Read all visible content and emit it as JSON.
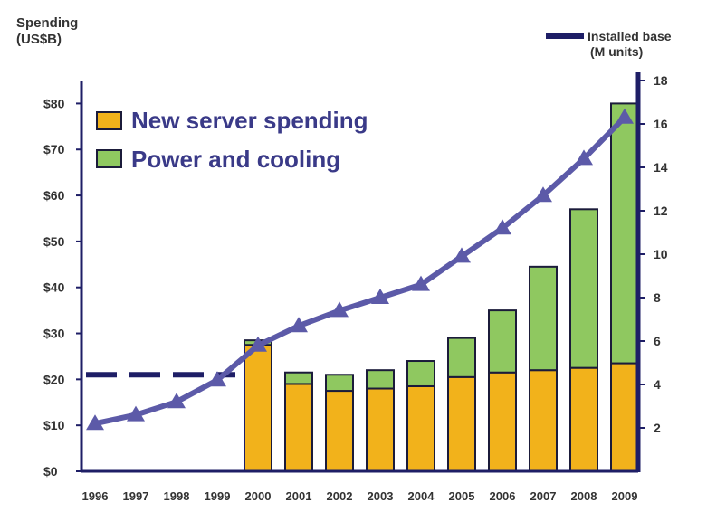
{
  "chart_data": {
    "type": "bar",
    "stacked": true,
    "categories": [
      "1996",
      "1997",
      "1998",
      "1999",
      "2000",
      "2001",
      "2002",
      "2003",
      "2004",
      "2005",
      "2006",
      "2007",
      "2008",
      "2009"
    ],
    "series": [
      {
        "name": "New server spending",
        "color": "#f2b21b",
        "axis": "left",
        "values": [
          null,
          null,
          null,
          null,
          27.5,
          19,
          17.5,
          18,
          18.5,
          20.5,
          21.5,
          22,
          22.5,
          23.5
        ]
      },
      {
        "name": "Power and cooling",
        "color": "#8fc860",
        "axis": "left",
        "values": [
          null,
          null,
          null,
          null,
          1,
          2.5,
          3.5,
          4,
          5.5,
          8.5,
          13.5,
          22.5,
          34.5,
          56.5
        ]
      },
      {
        "name": "Installed base",
        "color": "#5c5aa8",
        "type": "line",
        "axis": "right",
        "values": [
          2.2,
          2.6,
          3.2,
          4.2,
          5.8,
          6.7,
          7.4,
          8.0,
          8.6,
          9.9,
          11.2,
          12.7,
          14.4,
          16.3
        ]
      }
    ],
    "left_axis": {
      "label_line1": "Spending",
      "label_line2": "(US$B)",
      "ylim": [
        0,
        85
      ],
      "ticks": [
        0,
        10,
        20,
        30,
        40,
        50,
        60,
        70,
        80
      ],
      "tick_labels": [
        "$0",
        "$10",
        "$20",
        "$30",
        "$40",
        "$50",
        "$60",
        "$70",
        "$80"
      ]
    },
    "right_axis": {
      "label_line1": "Installed base",
      "label_line2": "(M units)",
      "ylim": [
        0,
        18
      ],
      "ticks": [
        2,
        4,
        6,
        8,
        10,
        12,
        14,
        16,
        18
      ],
      "tick_labels": [
        "2",
        "4",
        "6",
        "8",
        "10",
        "12",
        "14",
        "16",
        "18"
      ]
    },
    "dashed_reference": {
      "value": 21,
      "from": "1996",
      "to": "1999",
      "axis": "left"
    },
    "legend": {
      "position": "top-left",
      "top_right_entry": "Installed base"
    },
    "grid": false
  },
  "legend_labels": {
    "server": "New server spending",
    "power": "Power and cooling",
    "installed_line1": "Installed base",
    "installed_line2": "(M units)"
  },
  "axis_titles": {
    "left_line1": "Spending",
    "left_line2": "(US$B)"
  },
  "colors": {
    "server": "#f2b21b",
    "power": "#8fc860",
    "line": "#5c5aa8",
    "axis": "#1e1e66",
    "text": "#333333",
    "bar_outline": "#1b1b3a",
    "legend_text": "#3a3a88"
  }
}
